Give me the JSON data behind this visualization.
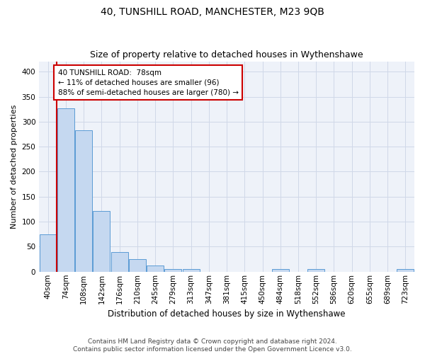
{
  "title1": "40, TUNSHILL ROAD, MANCHESTER, M23 9QB",
  "title2": "Size of property relative to detached houses in Wythenshawe",
  "xlabel": "Distribution of detached houses by size in Wythenshawe",
  "ylabel": "Number of detached properties",
  "categories": [
    "40sqm",
    "74sqm",
    "108sqm",
    "142sqm",
    "176sqm",
    "210sqm",
    "245sqm",
    "279sqm",
    "313sqm",
    "347sqm",
    "381sqm",
    "415sqm",
    "450sqm",
    "484sqm",
    "518sqm",
    "552sqm",
    "586sqm",
    "620sqm",
    "655sqm",
    "689sqm",
    "723sqm"
  ],
  "values": [
    75,
    327,
    283,
    122,
    39,
    25,
    12,
    5,
    5,
    0,
    0,
    0,
    0,
    5,
    0,
    5,
    0,
    0,
    0,
    0,
    5
  ],
  "bar_color": "#c5d8f0",
  "bar_edge_color": "#5b9bd5",
  "vline_color": "#cc0000",
  "annotation_text": "40 TUNSHILL ROAD:  78sqm\n← 11% of detached houses are smaller (96)\n88% of semi-detached houses are larger (780) →",
  "annotation_box_color": "#ffffff",
  "annotation_box_edge": "#cc0000",
  "ylim": [
    0,
    420
  ],
  "yticks": [
    0,
    50,
    100,
    150,
    200,
    250,
    300,
    350,
    400
  ],
  "grid_color": "#d0d8e8",
  "bg_color": "#eef2f9",
  "footer": "Contains HM Land Registry data © Crown copyright and database right 2024.\nContains public sector information licensed under the Open Government Licence v3.0.",
  "title1_fontsize": 10,
  "title2_fontsize": 9,
  "xlabel_fontsize": 8.5,
  "ylabel_fontsize": 8,
  "tick_fontsize": 7.5,
  "footer_fontsize": 6.5,
  "ann_fontsize": 7.5
}
